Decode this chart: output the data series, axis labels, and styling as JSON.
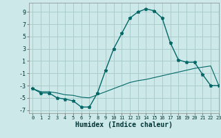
{
  "xlabel": "Humidex (Indice chaleur)",
  "background_color": "#cce8e8",
  "grid_color": "#aacccc",
  "line_color": "#006666",
  "xlim": [
    -0.5,
    23
  ],
  "ylim": [
    -7.5,
    10.5
  ],
  "xticks": [
    0,
    1,
    2,
    3,
    4,
    5,
    6,
    7,
    8,
    9,
    10,
    11,
    12,
    13,
    14,
    15,
    16,
    17,
    18,
    19,
    20,
    21,
    22,
    23
  ],
  "yticks": [
    -7,
    -5,
    -3,
    -1,
    1,
    3,
    5,
    7,
    9
  ],
  "line1_x": [
    0,
    1,
    2,
    3,
    4,
    5,
    6,
    7,
    8,
    9,
    10,
    11,
    12,
    13,
    14,
    15,
    16,
    17,
    18,
    19,
    20,
    21,
    22,
    23
  ],
  "line1_y": [
    -3.5,
    -4.2,
    -4.2,
    -5.0,
    -5.2,
    -5.5,
    -6.5,
    -6.5,
    -4.2,
    -0.5,
    3.0,
    5.5,
    8.0,
    9.0,
    9.5,
    9.2,
    8.0,
    4.0,
    1.2,
    0.8,
    0.8,
    -1.2,
    -3.0,
    -3.0
  ],
  "line2_x": [
    0,
    1,
    2,
    3,
    4,
    5,
    6,
    7,
    8,
    9,
    10,
    11,
    12,
    13,
    14,
    15,
    16,
    17,
    18,
    19,
    20,
    21,
    22,
    23
  ],
  "line2_y": [
    -3.5,
    -4.0,
    -4.0,
    -4.2,
    -4.5,
    -4.6,
    -4.9,
    -5.0,
    -4.5,
    -4.0,
    -3.5,
    -3.0,
    -2.5,
    -2.2,
    -2.0,
    -1.7,
    -1.4,
    -1.1,
    -0.8,
    -0.5,
    -0.2,
    0.0,
    0.2,
    -3.0
  ]
}
